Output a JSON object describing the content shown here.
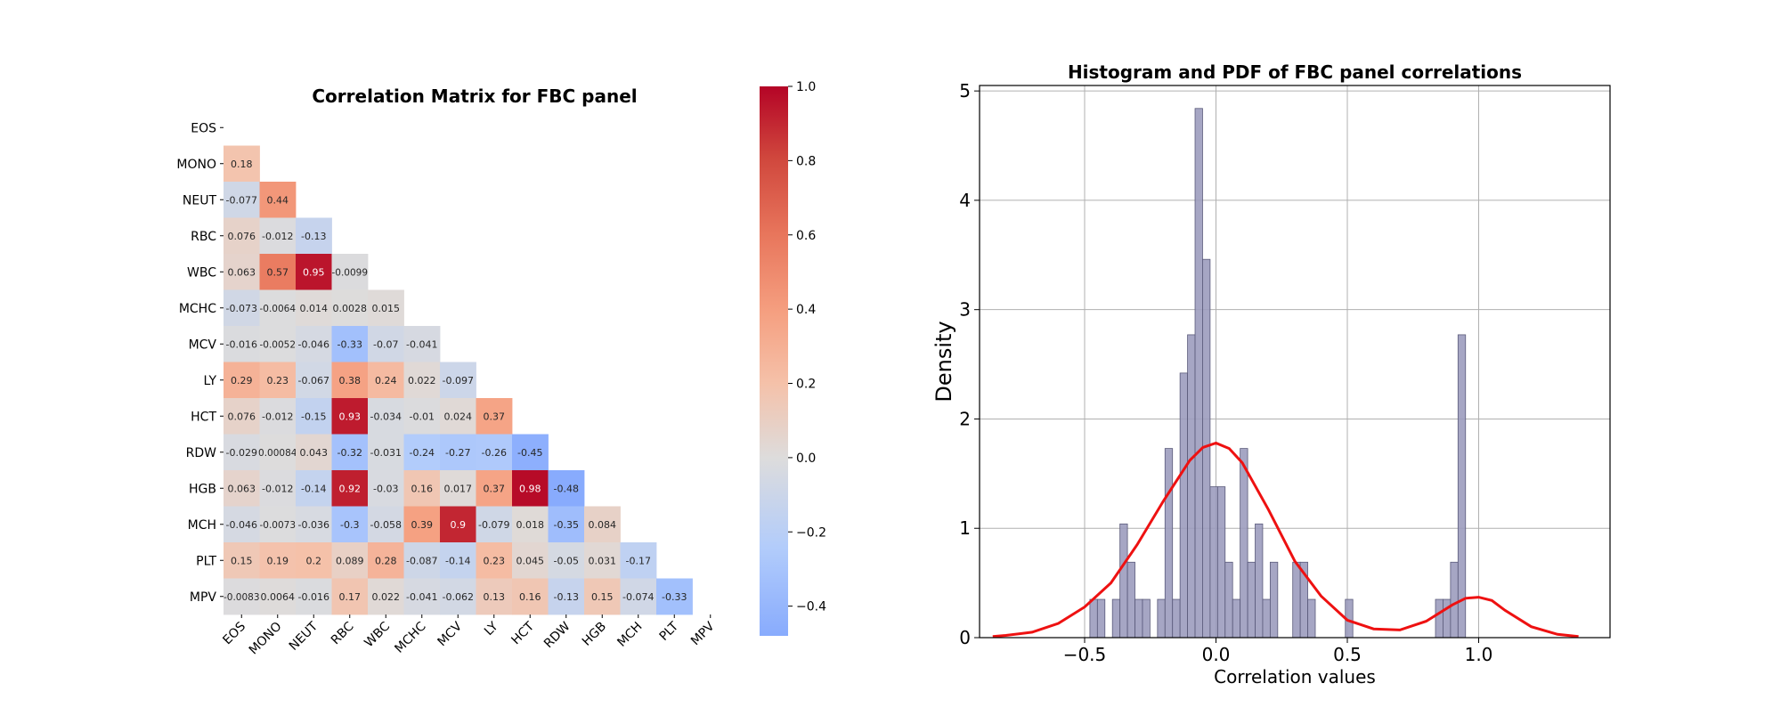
{
  "chart_data": [
    {
      "type": "heatmap",
      "title": "Correlation Matrix for FBC panel",
      "xlabel": "",
      "ylabel": "",
      "row_labels": [
        "EOS",
        "MONO",
        "NEUT",
        "RBC",
        "WBC",
        "MCHC",
        "MCV",
        "LY",
        "HCT",
        "RDW",
        "HGB",
        "MCH",
        "PLT",
        "MPV"
      ],
      "col_labels": [
        "EOS",
        "MONO",
        "NEUT",
        "RBC",
        "WBC",
        "MCHC",
        "MCV",
        "LY",
        "HCT",
        "RDW",
        "HGB",
        "MCH",
        "PLT",
        "MPV"
      ],
      "mask": "upper triangle including diagonal",
      "values": [
        [],
        [
          "0.18"
        ],
        [
          "-0.077",
          "0.44"
        ],
        [
          "0.076",
          "-0.012",
          "-0.13"
        ],
        [
          "0.063",
          "0.57",
          "0.95",
          "-0.0099"
        ],
        [
          "-0.073",
          "-0.0064",
          "0.014",
          "0.0028",
          "0.015"
        ],
        [
          "-0.016",
          "-0.0052",
          "-0.046",
          "-0.33",
          "-0.07",
          "-0.041"
        ],
        [
          "0.29",
          "0.23",
          "-0.067",
          "0.38",
          "0.24",
          "0.022",
          "-0.097"
        ],
        [
          "0.076",
          "-0.012",
          "-0.15",
          "0.93",
          "-0.034",
          "-0.01",
          "0.024",
          "0.37"
        ],
        [
          "-0.029",
          "0.00084",
          "0.043",
          "-0.32",
          "-0.031",
          "-0.24",
          "-0.27",
          "-0.26",
          "-0.45"
        ],
        [
          "0.063",
          "-0.012",
          "-0.14",
          "0.92",
          "-0.03",
          "0.16",
          "0.017",
          "0.37",
          "0.98",
          "-0.48"
        ],
        [
          "-0.046",
          "-0.0073",
          "-0.036",
          "-0.3",
          "-0.058",
          "0.39",
          "0.9",
          "-0.079",
          "0.018",
          "-0.35",
          "0.084"
        ],
        [
          "0.15",
          "0.19",
          "0.2",
          "0.089",
          "0.28",
          "-0.087",
          "-0.14",
          "0.23",
          "0.045",
          "-0.05",
          "0.031",
          "-0.17"
        ],
        [
          "-0.0083",
          "0.0064",
          "-0.016",
          "0.17",
          "0.022",
          "-0.041",
          "-0.062",
          "0.13",
          "0.16",
          "-0.13",
          "0.15",
          "-0.074",
          "-0.33"
        ]
      ],
      "colormap": "coolwarm",
      "colorbar": {
        "vmin": -0.48,
        "vmax": 1.0,
        "ticks": [
          -0.4,
          -0.2,
          0.0,
          0.2,
          0.4,
          0.6,
          0.8,
          1.0
        ],
        "tick_labels": [
          "−0.4",
          "−0.2",
          "0.0",
          "0.2",
          "0.4",
          "0.6",
          "0.8",
          "1.0"
        ]
      }
    },
    {
      "type": "bar",
      "subtype": "histogram with density curve",
      "title": "Histogram and PDF of FBC panel correlations",
      "xlabel": "Correlation values",
      "ylabel": "Density",
      "xlim": [
        -0.9,
        1.5
      ],
      "ylim": [
        0,
        5.05
      ],
      "xticks": [
        -0.5,
        0.0,
        0.5,
        1.0
      ],
      "xtick_labels": [
        "−0.5",
        "0.0",
        "0.5",
        "1.0"
      ],
      "yticks": [
        0,
        1,
        2,
        3,
        4,
        5
      ],
      "ytick_labels": [
        "0",
        "1",
        "2",
        "3",
        "4",
        "5"
      ],
      "grid": true,
      "bins": {
        "left_edges": [
          -0.48,
          -0.4514,
          -0.4228,
          -0.3942,
          -0.3656,
          -0.337,
          -0.3084,
          -0.2798,
          -0.2512,
          -0.2226,
          -0.194,
          -0.1654,
          -0.1368,
          -0.1082,
          -0.0796,
          -0.051,
          -0.0224,
          0.0062,
          0.0348,
          0.0634,
          0.092,
          0.1206,
          0.1492,
          0.1778,
          0.2064,
          0.235,
          0.2636,
          0.2922,
          0.3208,
          0.3494,
          0.378,
          0.4066,
          0.4352,
          0.4638,
          0.4924,
          0.521,
          0.5496,
          0.5782,
          0.6068,
          0.6354,
          0.664,
          0.6926,
          0.7212,
          0.7498,
          0.7784,
          0.807,
          0.8356,
          0.8642,
          0.8928,
          0.9214,
          0.95
        ],
        "width": 0.0286,
        "density": [
          0.35,
          0.35,
          0,
          0.35,
          1.04,
          0.69,
          0.35,
          0.35,
          0,
          0.35,
          1.73,
          0.35,
          2.42,
          2.77,
          4.84,
          3.46,
          1.38,
          1.38,
          0.69,
          0.35,
          1.73,
          0.69,
          1.04,
          0.35,
          0.69,
          0,
          0,
          0.69,
          0.69,
          0.35,
          0,
          0,
          0,
          0,
          0.35,
          0,
          0,
          0,
          0,
          0,
          0,
          0,
          0,
          0,
          0,
          0,
          0.35,
          0.35,
          0.69,
          2.77
        ]
      },
      "series": [
        {
          "name": "",
          "kind": "kde",
          "x": [
            -0.85,
            -0.8,
            -0.7,
            -0.6,
            -0.5,
            -0.4,
            -0.3,
            -0.2,
            -0.1,
            -0.05,
            0.0,
            0.05,
            0.1,
            0.2,
            0.3,
            0.4,
            0.5,
            0.6,
            0.7,
            0.8,
            0.9,
            0.95,
            1.0,
            1.05,
            1.1,
            1.2,
            1.3,
            1.38
          ],
          "y": [
            0.01,
            0.02,
            0.05,
            0.13,
            0.28,
            0.5,
            0.85,
            1.25,
            1.62,
            1.74,
            1.78,
            1.73,
            1.6,
            1.17,
            0.7,
            0.38,
            0.16,
            0.08,
            0.07,
            0.15,
            0.3,
            0.36,
            0.37,
            0.34,
            0.25,
            0.1,
            0.03,
            0.01
          ]
        }
      ],
      "colors": {
        "bar_fill": "#9c9cbe",
        "bar_edge": "#5a5a7a",
        "kde_line": "#ee1111"
      }
    }
  ]
}
